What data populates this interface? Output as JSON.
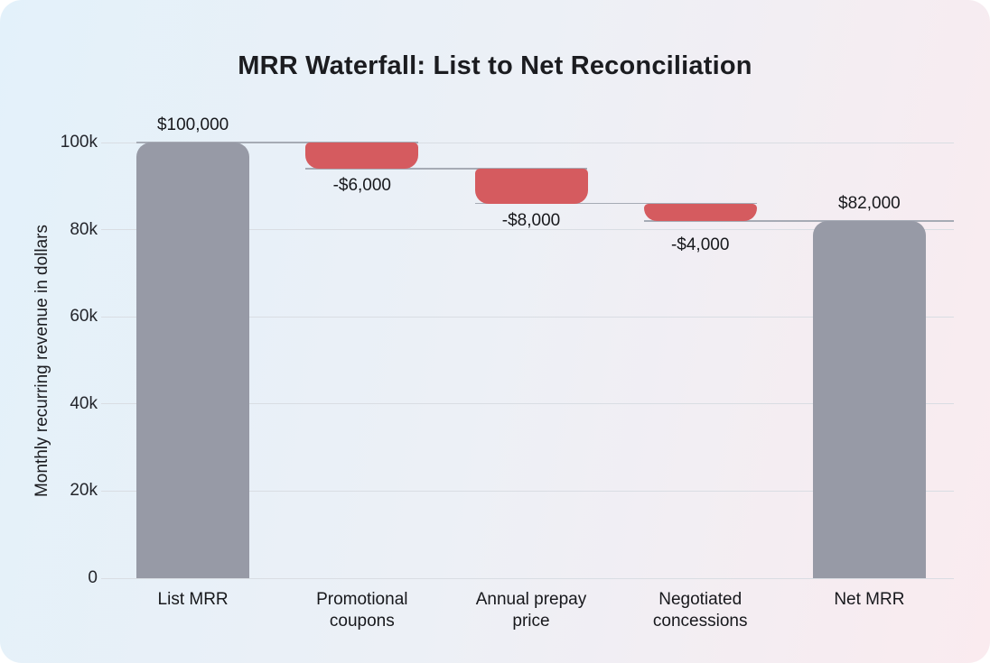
{
  "chart_data": {
    "type": "bar",
    "subtype": "waterfall",
    "title": "MRR Waterfall: List to Net Reconciliation",
    "xlabel": "",
    "ylabel": "Monthly recurring revenue in dollars",
    "categories": [
      "List MRR",
      "Promotional coupons",
      "Annual prepay price",
      "Negotiated concessions",
      "Net MRR"
    ],
    "values": [
      100000,
      -6000,
      -8000,
      -4000,
      82000
    ],
    "measure": [
      "absolute",
      "relative",
      "relative",
      "relative",
      "total"
    ],
    "cumulative": [
      100000,
      94000,
      86000,
      82000,
      82000
    ],
    "data_labels": [
      "$100,000",
      "-$6,000",
      "-$8,000",
      "-$4,000",
      "$82,000"
    ],
    "ylim": [
      0,
      100000
    ],
    "ytick_values": [
      0,
      20000,
      40000,
      60000,
      80000,
      100000
    ],
    "ytick_labels": [
      "0",
      "20k",
      "40k",
      "60k",
      "80k",
      "100k"
    ],
    "grid": true,
    "legend": false,
    "colors": {
      "total_bar": "#979aa6",
      "decrease_bar": "#d55b5f",
      "gridline": "#d9dde3",
      "connector": "#a6abb5",
      "text": "#1b1c20",
      "background_left": "#e3f1fa",
      "background_right": "#faebef"
    }
  }
}
